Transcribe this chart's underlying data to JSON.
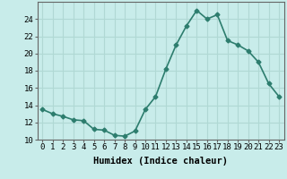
{
  "x": [
    0,
    1,
    2,
    3,
    4,
    5,
    6,
    7,
    8,
    9,
    10,
    11,
    12,
    13,
    14,
    15,
    16,
    17,
    18,
    19,
    20,
    21,
    22,
    23
  ],
  "y": [
    13.5,
    13.0,
    12.7,
    12.3,
    12.2,
    11.2,
    11.1,
    10.5,
    10.4,
    11.0,
    13.5,
    15.0,
    18.2,
    21.0,
    23.2,
    25.0,
    24.0,
    24.5,
    21.5,
    21.0,
    20.3,
    19.0,
    16.5,
    15.0
  ],
  "line_color": "#2d7d6e",
  "marker": "D",
  "marker_size": 2.5,
  "bg_color": "#c8ecea",
  "grid_color": "#b0d8d4",
  "xlabel": "Humidex (Indice chaleur)",
  "xlim": [
    -0.5,
    23.5
  ],
  "ylim": [
    10,
    26
  ],
  "yticks": [
    10,
    12,
    14,
    16,
    18,
    20,
    22,
    24
  ],
  "xticks": [
    0,
    1,
    2,
    3,
    4,
    5,
    6,
    7,
    8,
    9,
    10,
    11,
    12,
    13,
    14,
    15,
    16,
    17,
    18,
    19,
    20,
    21,
    22,
    23
  ],
  "xlabel_fontsize": 7.5,
  "tick_fontsize": 6.5,
  "line_width": 1.2
}
